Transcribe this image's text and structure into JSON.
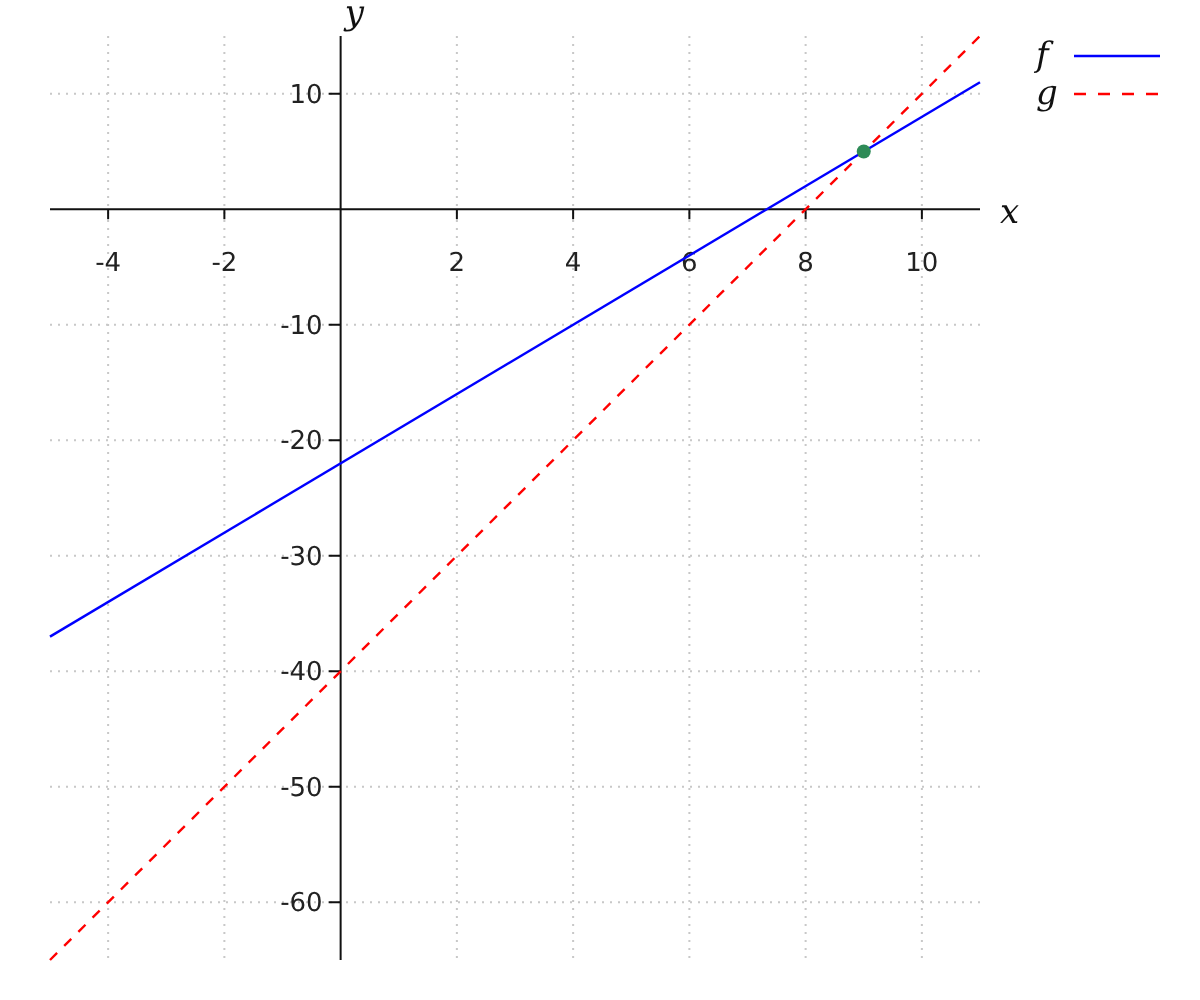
{
  "chart_data": {
    "type": "line",
    "xlabel": "x",
    "ylabel": "y",
    "xlim": [
      -5,
      11
    ],
    "ylim": [
      -65,
      15
    ],
    "xticks": [
      -4,
      -2,
      2,
      4,
      6,
      8,
      10
    ],
    "yticks": [
      -60,
      -50,
      -40,
      -30,
      -20,
      -10,
      10
    ],
    "grid": true,
    "legend": "top right",
    "series": [
      {
        "name": "f",
        "color": "#0000ff",
        "x": [
          -5,
          11
        ],
        "values": [
          -37,
          11
        ],
        "line_style": "solid"
      },
      {
        "name": "g",
        "color": "#ff0000",
        "x": [
          -5,
          11
        ],
        "values": [
          -65,
          15
        ],
        "line_style": "dashed"
      },
      {
        "type": "scatter",
        "color": "#2e8b57",
        "x": [
          9
        ],
        "values": [
          5
        ],
        "marker": "circle"
      }
    ]
  }
}
